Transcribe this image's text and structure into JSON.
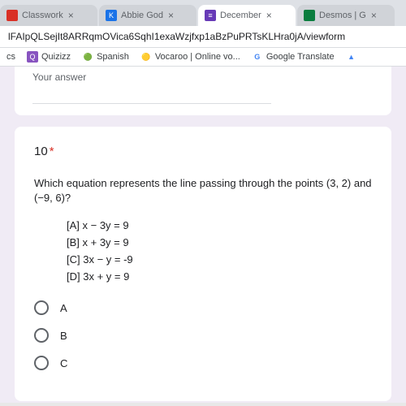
{
  "tabs": [
    {
      "label": "Classwork",
      "iconBg": "#d93025",
      "iconText": ""
    },
    {
      "label": "Abbie God",
      "iconBg": "#1a73e8",
      "iconText": "K"
    },
    {
      "label": "December",
      "iconBg": "#673ab7",
      "iconText": "≡"
    },
    {
      "label": "Desmos | G",
      "iconBg": "#0a7d3e",
      "iconText": ""
    }
  ],
  "url": "lFAIpQLSejIt8ARRqmOVica6SqhI1exaWzjfxp1aBzPuPRTsKLHra0jA/viewform",
  "bookmarks": [
    {
      "label": "cs",
      "iconBg": "transparent",
      "iconText": ""
    },
    {
      "label": "Quizizz",
      "iconBg": "#8854c0",
      "iconText": "Q",
      "iconColor": "#fff"
    },
    {
      "label": "Spanish",
      "iconBg": "transparent",
      "iconText": "🟢"
    },
    {
      "label": "Vocaroo | Online vo...",
      "iconBg": "transparent",
      "iconText": "🟡"
    },
    {
      "label": "Google Translate",
      "iconBg": "transparent",
      "iconText": "G",
      "iconColor": "#4285f4"
    },
    {
      "label": "",
      "iconBg": "transparent",
      "iconText": "▲",
      "iconColor": "#4285f4"
    }
  ],
  "prevAnswerLabel": "Your answer",
  "question": {
    "number": "10",
    "required": "*",
    "text": "Which equation represents the line passing through the points (3, 2) and (−9, 6)?",
    "choices": [
      "[A] x − 3y = 9",
      "[B] x + 3y = 9",
      "[C] 3x − y = -9",
      "[D] 3x + y = 9"
    ],
    "options": [
      "A",
      "B",
      "C"
    ]
  }
}
